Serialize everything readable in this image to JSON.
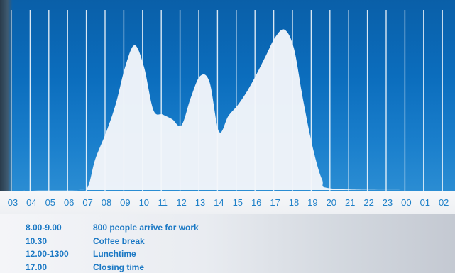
{
  "chart_data": {
    "type": "area",
    "title": "",
    "xlabel": "",
    "ylabel": "",
    "categories": [
      "03",
      "04",
      "05",
      "06",
      "07",
      "08",
      "09",
      "10",
      "11",
      "12",
      "13",
      "14",
      "15",
      "16",
      "17",
      "18",
      "19",
      "20",
      "21",
      "22",
      "23",
      "00",
      "01",
      "02"
    ],
    "series": [
      {
        "x": [
          3,
          6.5,
          7,
          7.4,
          8,
          8.5,
          9,
          9.5,
          10,
          10.5,
          11,
          11.5,
          12,
          12.5,
          13,
          13.5,
          14,
          14.5,
          15,
          15.5,
          16,
          16.5,
          17,
          17.5,
          18,
          18.5,
          19,
          19.5,
          20,
          24
        ],
        "values": [
          0,
          0,
          2,
          20,
          38,
          56,
          80,
          94,
          80,
          52,
          49,
          46,
          42,
          60,
          74,
          70,
          38,
          48,
          55,
          64,
          75,
          87,
          99,
          104,
          92,
          58,
          28,
          7,
          1,
          0
        ]
      }
    ],
    "ylim": [
      0,
      115
    ],
    "grid": true,
    "fill_color": "#f4f6fa",
    "gridline_color": "#ffffff",
    "background_color": "#0b6dbd",
    "tick_label_color": "#1e80c8"
  },
  "schedule": [
    {
      "time": "8.00-9.00",
      "event": "800 people arrive for work"
    },
    {
      "time": "10.30",
      "event": "Coffee break"
    },
    {
      "time": "12.00-1300",
      "event": "Lunchtime"
    },
    {
      "time": "17.00",
      "event": "Closing time"
    }
  ]
}
